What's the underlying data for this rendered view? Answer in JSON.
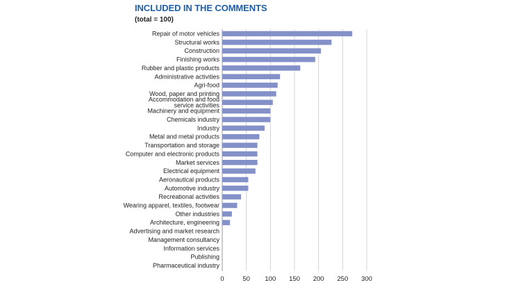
{
  "title": "INCLUDED IN THE COMMENTS",
  "subtitle": "(total = 100)",
  "chart_data": {
    "type": "bar",
    "orientation": "horizontal",
    "color": "#8490c8",
    "categories": [
      "Repair of motor vehicles",
      "Structural works",
      "Construction",
      "Finishing works",
      "Rubber and plastic products",
      "Administrative activities",
      "Agri-food",
      "Wood, paper and printing",
      [
        "Accommodation and food",
        "service activities"
      ],
      "Machinery and equipment",
      "Chemicals industry",
      "Industry",
      "Metal and metal products",
      "Transportation and storage",
      "Computer and electronic products",
      "Market services",
      "Electrical equipment",
      "Aeronautical products",
      "Automotive industry",
      "Recreational activities",
      "Wearing apparel, textiles, footwear",
      "Other industries",
      "Architecture, engineering",
      "Advertising and market research",
      "Management consultancy",
      "Information services",
      "Publishing",
      "Pharmaceutical industry"
    ],
    "values": [
      270,
      227,
      205,
      193,
      162,
      120,
      115,
      112,
      105,
      100,
      100,
      88,
      77,
      73,
      73,
      73,
      69,
      54,
      54,
      39,
      31,
      20,
      16,
      0,
      0,
      0,
      0,
      0
    ],
    "xlim": [
      0,
      300
    ],
    "xticks": [
      0,
      50,
      100,
      150,
      200,
      250,
      300
    ],
    "xlabel": "",
    "ylabel": "",
    "grid": true
  }
}
